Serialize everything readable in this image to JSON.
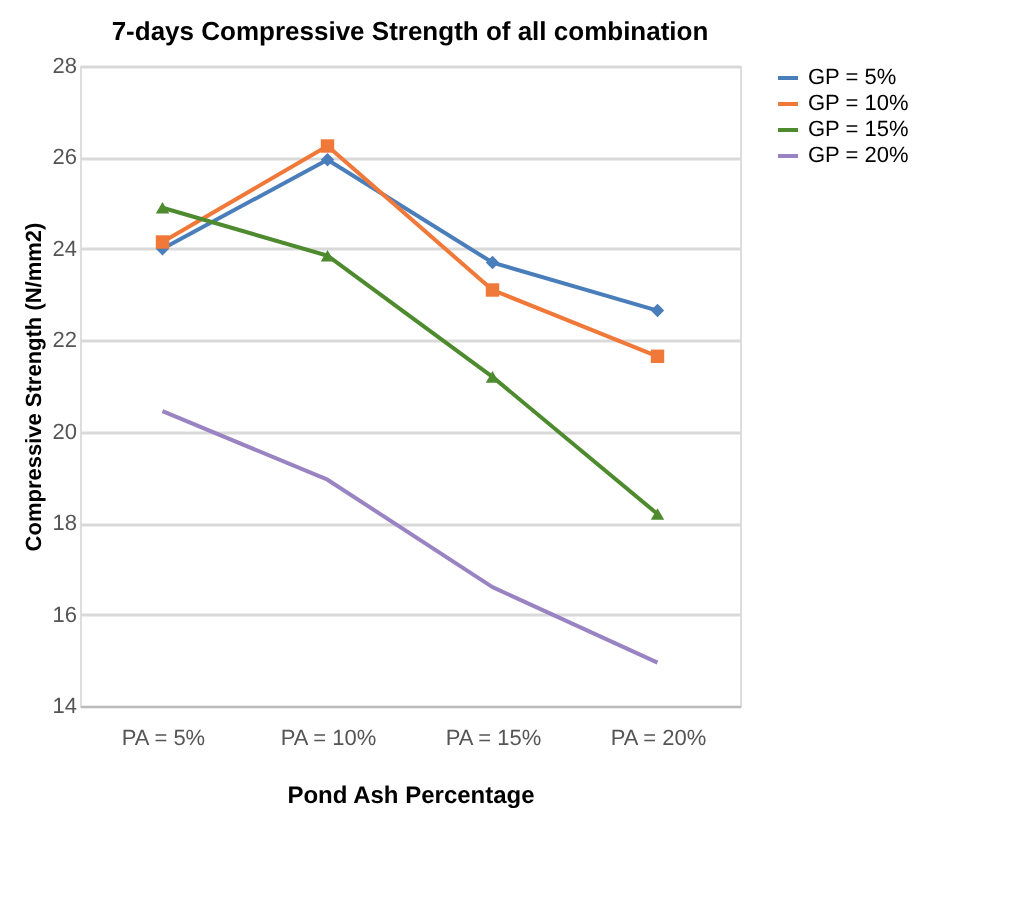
{
  "chart_data": {
    "type": "line",
    "title": "7-days Compressive Strength of all combination",
    "xlabel": "Pond Ash Percentage",
    "ylabel": "Compressive Strength (N/mm2)",
    "categories": [
      "PA = 5%",
      "PA = 10%",
      "PA = 15%",
      "PA = 20%"
    ],
    "series": [
      {
        "name": "GP = 5%",
        "color": "#4a7ebb",
        "marker": "diamond",
        "values": [
          24.0,
          25.95,
          23.7,
          22.65
        ]
      },
      {
        "name": "GP = 10%",
        "color": "#f07838",
        "marker": "square",
        "values": [
          24.15,
          26.25,
          23.1,
          21.65
        ]
      },
      {
        "name": "GP = 15%",
        "color": "#4e8a2e",
        "marker": "triangle",
        "values": [
          24.9,
          23.85,
          21.2,
          18.2
        ]
      },
      {
        "name": "GP = 20%",
        "color": "#9983c2",
        "marker": "none",
        "values": [
          20.45,
          18.95,
          16.6,
          14.95
        ]
      }
    ],
    "ylim": [
      14,
      28
    ],
    "yticks": [
      14,
      16,
      18,
      20,
      22,
      24,
      26,
      28
    ],
    "grid": "y",
    "legend": "right"
  }
}
